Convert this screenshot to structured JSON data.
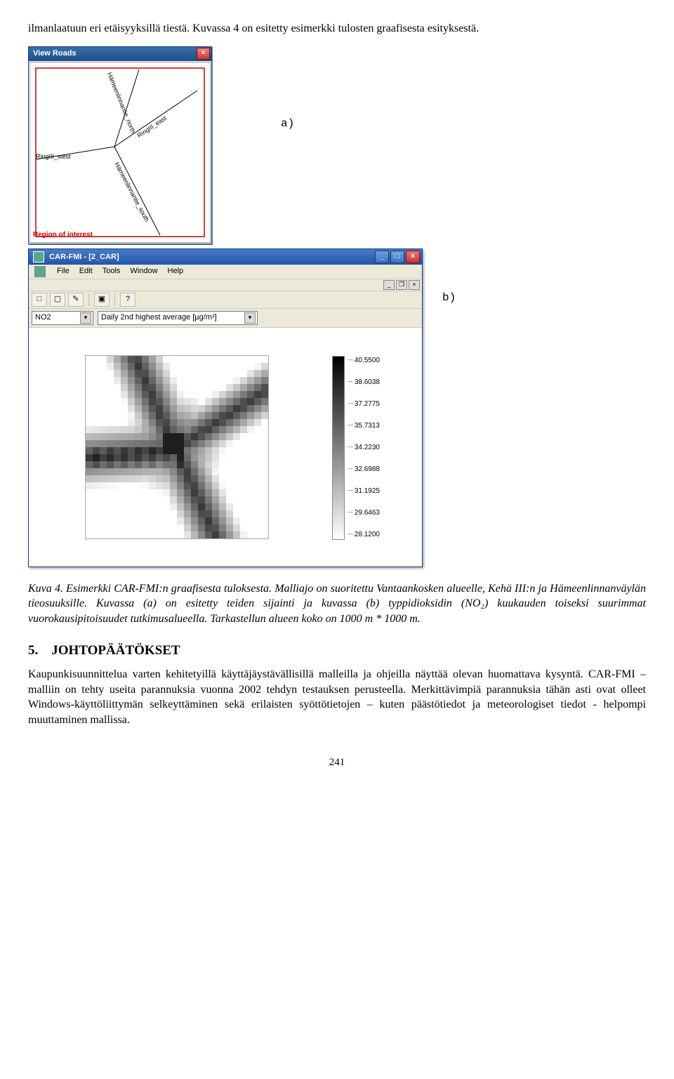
{
  "intro_paragraph": "ilmanlaatuun eri etäisyyksillä tiestä. Kuvassa 4 on esitetty esimerkki tulosten graafisesta esityksestä.",
  "fig_a": {
    "label": "a)",
    "window_title": "View Roads",
    "roads": {
      "ring_west": "RingIII_west",
      "ham_north": "Hämeenlinnantie_north",
      "ring_east": "RingIII_east",
      "ham_south": "Hämeenlinnantie_south"
    },
    "roi_label": "Region of interest",
    "roi_color": "#cc0000",
    "road_color": "#000000",
    "bg": "#ffffff"
  },
  "fig_b": {
    "label": "b)",
    "window_title": "CAR-FMI - [2_CAR]",
    "menus": [
      "File",
      "Edit",
      "Tools",
      "Window",
      "Help"
    ],
    "toolbar_icons": [
      "□",
      "▢",
      "✎",
      "▣",
      "?"
    ],
    "select_no2": "NO2",
    "select_metric": "Daily 2nd highest average [µg/m³]",
    "legend_values": [
      "40.5500",
      "38.6038",
      "37.2775",
      "35.7313",
      "34.2230",
      "32.6988",
      "31.1925",
      "29.6463",
      "28.1200"
    ],
    "legend_top": "#000000",
    "legend_bottom": "#ffffff",
    "titlebar_grad_from": "#4a7ac8",
    "titlebar_grad_to": "#2255aa",
    "chrome_bg": "#ece9d8"
  },
  "caption": "Kuva 4. Esimerkki CAR-FMI:n graafisesta tuloksesta. Malliajo on suoritettu Vantaankosken alueelle, Kehä III:n ja Hämeenlinnanväylän tieosuuksille. Kuvassa (a) on esitetty teiden sijainti ja kuvassa (b) typpidioksidin (NO₂) kuukauden toiseksi suurimmat vuorokausipitoisuudet tutkimusalueella. Tarkastellun alueen koko on 1000 m * 1000 m.",
  "section": {
    "number": "5.",
    "title": "JOHTOPÄÄTÖKSET"
  },
  "conclusion_paragraph": "Kaupunkisuunnittelua varten kehitetyillä käyttäjäystävällisillä malleilla ja ohjeilla näyttää olevan huomattava kysyntä. CAR-FMI –malliin on tehty useita parannuksia vuonna 2002 tehdyn testauksen perusteella. Merkittävimpiä parannuksia tähän asti ovat olleet Windows-käyttöliittymän selkeyttäminen sekä erilaisten syöttötietojen – kuten päästötiedot ja meteorologiset tiedot - helpompi muuttaminen mallissa.",
  "page_number": "241"
}
